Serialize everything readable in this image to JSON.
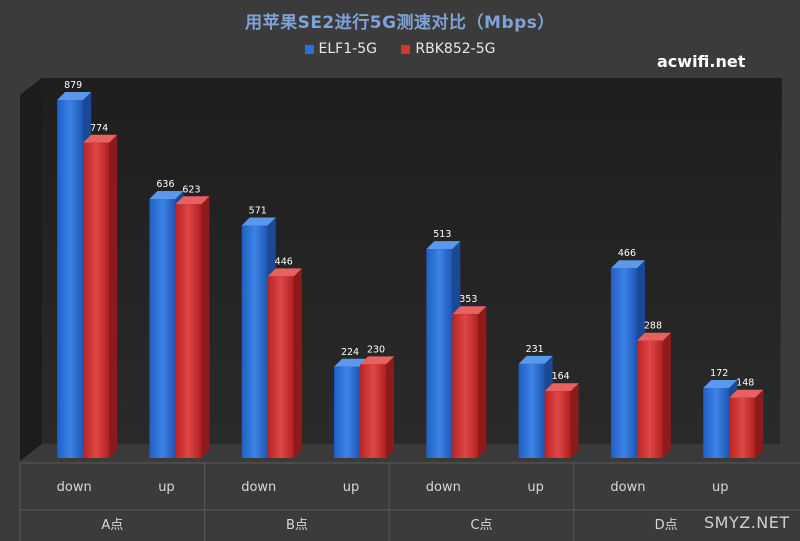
{
  "chart_data": {
    "type": "bar",
    "title": "用苹果SE2进行5G测速对比（Mbps）",
    "groups": [
      "A点",
      "B点",
      "C点",
      "D点"
    ],
    "categories": [
      "down",
      "up",
      "down",
      "up",
      "down",
      "up",
      "down",
      "up"
    ],
    "series": [
      {
        "name": "ELF1-5G",
        "color": "#2e6fd4",
        "values": [
          879,
          636,
          571,
          224,
          513,
          231,
          466,
          172
        ]
      },
      {
        "name": "RBK852-5G",
        "color": "#d13434",
        "values": [
          774,
          623,
          446,
          230,
          353,
          164,
          288,
          148
        ]
      }
    ],
    "ylim": [
      0,
      900
    ],
    "legend_position": "top",
    "grid": false
  },
  "watermark": "acwifi.net",
  "watermark2": "SMYZ.NET"
}
